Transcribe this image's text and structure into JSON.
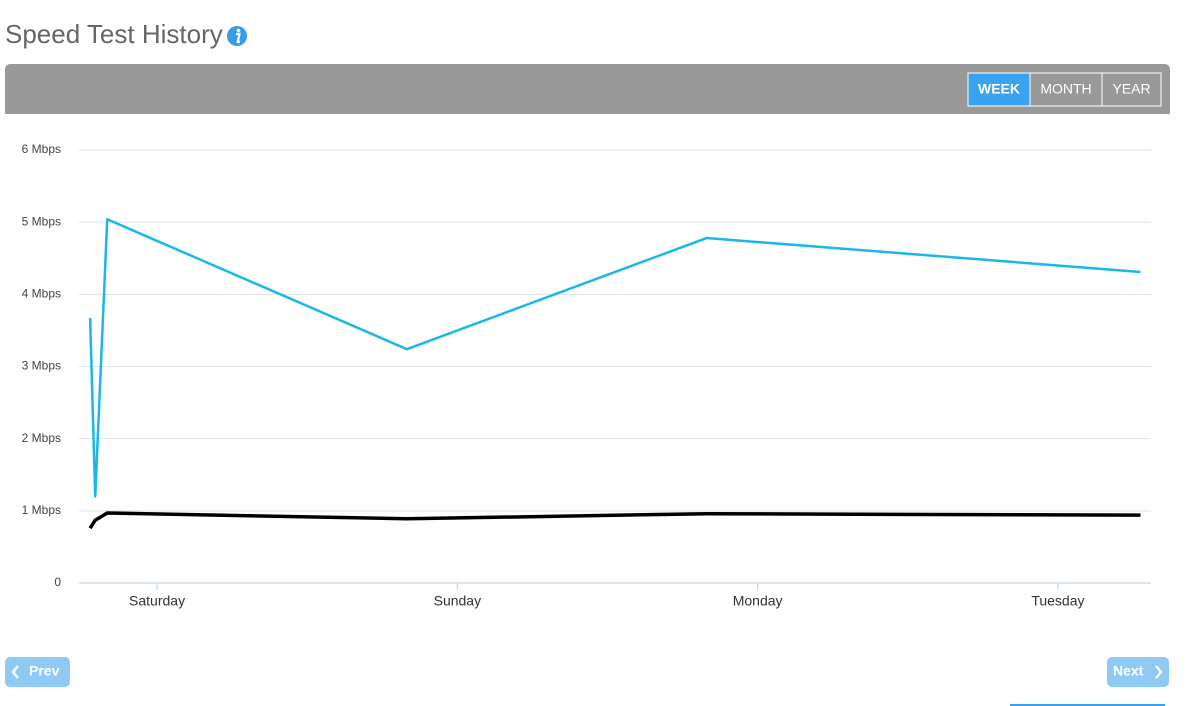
{
  "header": {
    "title": "Speed Test History"
  },
  "range_buttons": [
    {
      "label": "WEEK",
      "active": true
    },
    {
      "label": "MONTH",
      "active": false
    },
    {
      "label": "YEAR",
      "active": false
    }
  ],
  "nav": {
    "prev": "Prev",
    "next": "Next"
  },
  "chart_data": {
    "type": "line",
    "x": [
      -0.223,
      -0.206,
      -0.166,
      0.832,
      1.83,
      3.275
    ],
    "xlim": [
      -0.26,
      3.31
    ],
    "xticks": [
      {
        "value": 0,
        "label": "Saturday"
      },
      {
        "value": 1,
        "label": "Sunday"
      },
      {
        "value": 2,
        "label": "Monday"
      },
      {
        "value": 3,
        "label": "Tuesday"
      }
    ],
    "ylim": [
      0,
      6
    ],
    "yticks": [
      0,
      {
        "value": 1,
        "label": "1 Mbps"
      },
      {
        "value": 2,
        "label": "2 Mbps"
      },
      {
        "value": 3,
        "label": "3 Mbps"
      },
      {
        "value": 4,
        "label": "4 Mbps"
      },
      {
        "value": 5,
        "label": "5 Mbps"
      },
      {
        "value": 6,
        "label": "6 Mbps"
      }
    ],
    "grid": true,
    "series": [
      {
        "color": "#1ab8e8",
        "values": [
          3.67,
          1.2,
          5.04,
          3.24,
          4.78,
          4.31
        ]
      },
      {
        "color": "#000000",
        "values": [
          0.76,
          0.87,
          0.97,
          0.89,
          0.96,
          0.94
        ]
      }
    ]
  }
}
